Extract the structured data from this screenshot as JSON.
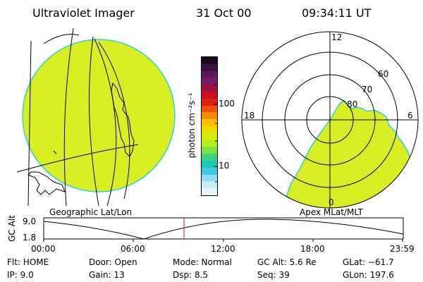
{
  "header": {
    "instrument": "Ultraviolet Imager",
    "date": "31 Oct 00",
    "time": "09:34:11 UT"
  },
  "colorbar": {
    "unit_label": "photon cm⁻²s⁻¹",
    "ticks": [
      "100",
      "10"
    ],
    "colors": [
      "#1a0a1e",
      "#3a1040",
      "#5a1860",
      "#7a1a6a",
      "#a01040",
      "#c81020",
      "#e02010",
      "#f05008",
      "#f88a00",
      "#fcc000",
      "#ecdc00",
      "#d2ec10",
      "#b0ee20",
      "#80e040",
      "#40d080",
      "#20c8b8",
      "#40c8e0",
      "#90dcf0",
      "#c8ecf6",
      "#e6f4f8"
    ]
  },
  "left_panel": {
    "label": "Geographic Lat/Lon",
    "fill_color": "#d8ee22",
    "edge_color": "#33ccdd"
  },
  "right_panel": {
    "label": "Apex MLat/MLT",
    "mlt_labels": {
      "top": "12",
      "left": "18",
      "right": "6",
      "bottom": "0"
    },
    "lat_labels": [
      "60",
      "70",
      "80"
    ]
  },
  "timeline": {
    "ylabel": "GC Alt",
    "y_ticks": [
      "9.0",
      "1.8"
    ],
    "x_ticks": [
      "00:00",
      "06:00",
      "12:00",
      "18:00",
      "23:59"
    ],
    "marker_color": "#cc2222"
  },
  "status": {
    "flt": "Flt:  HOME",
    "ip": "IP:  9.0",
    "door": "Door: Open",
    "gain": "Gain: 13",
    "mode": "Mode: Normal",
    "dsp": "Dsp:     8.5",
    "gc_alt": "GC Alt: 5.6 Re",
    "seq": "Seq: 39",
    "glat": "GLat: −61.7",
    "glon": "GLon: 197.6"
  }
}
